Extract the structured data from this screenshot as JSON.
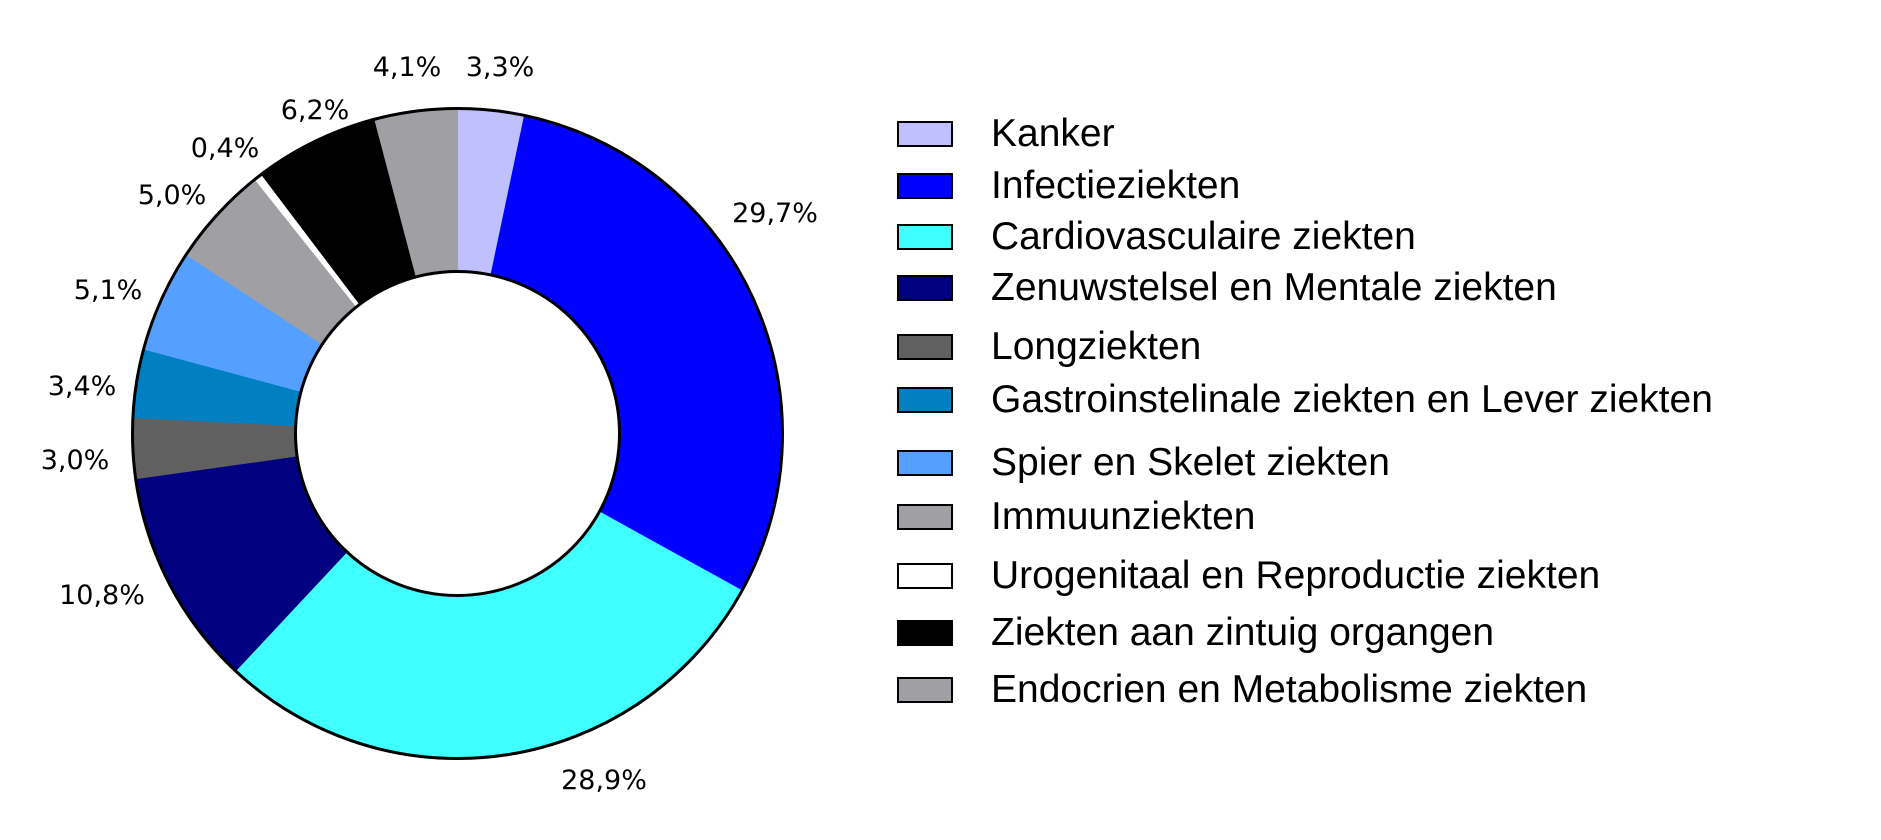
{
  "chart_data": {
    "type": "pie",
    "variant": "donut",
    "title": "",
    "start_angle_deg": 0,
    "direction": "clockwise",
    "legend_position": "right",
    "categories": [
      "Kanker",
      "Infectieziekten",
      "Cardiovasculaire ziekten",
      "Zenuwstelsel en Mentale ziekten",
      "Longziekten",
      "Gastroinstelinale ziekten en Lever ziekten",
      "Spier en Skelet ziekten",
      "Immuunziekten",
      "Urogenitaal en Reproductie ziekten",
      "Ziekten aan zintuig organgen",
      "Endocrien en Metabolisme ziekten"
    ],
    "values": [
      3.3,
      29.7,
      28.9,
      10.8,
      3.0,
      3.4,
      5.1,
      5.0,
      0.4,
      6.2,
      4.1
    ],
    "value_labels": [
      "3,3%",
      "29,7%",
      "28,9%",
      "10,8%",
      "3,0%",
      "3,4%",
      "5,1%",
      "5,0%",
      "0,4%",
      "6,2%",
      "4,1%"
    ],
    "unit": "%",
    "colors": [
      "#C0C0FF",
      "#0000FF",
      "#40FFFF",
      "#000080",
      "#606060",
      "#0080C0",
      "#55A0FF",
      "#A0A0A4",
      "#FFFFFF",
      "#000000",
      "#A0A0A4"
    ]
  },
  "legend": {
    "items": [
      {
        "label": "Kanker",
        "color": "#C0C0FF"
      },
      {
        "label": "Infectieziekten",
        "color": "#0000FF"
      },
      {
        "label": "Cardiovasculaire ziekten",
        "color": "#40FFFF"
      },
      {
        "label": "Zenuwstelsel en Mentale ziekten",
        "color": "#000080"
      },
      {
        "label": "Longziekten",
        "color": "#606060"
      },
      {
        "label": "Gastroinstelinale ziekten en Lever ziekten",
        "color": "#0080C0"
      },
      {
        "label": "Spier en Skelet ziekten",
        "color": "#55A0FF"
      },
      {
        "label": "Immuunziekten",
        "color": "#A0A0A4"
      },
      {
        "label": "Urogenitaal en Reproductie ziekten",
        "color": "#FFFFFF"
      },
      {
        "label": "Ziekten aan zintuig organgen",
        "color": "#000000"
      },
      {
        "label": "Endocrien en Metabolisme ziekten",
        "color": "#A0A0A4"
      }
    ]
  }
}
